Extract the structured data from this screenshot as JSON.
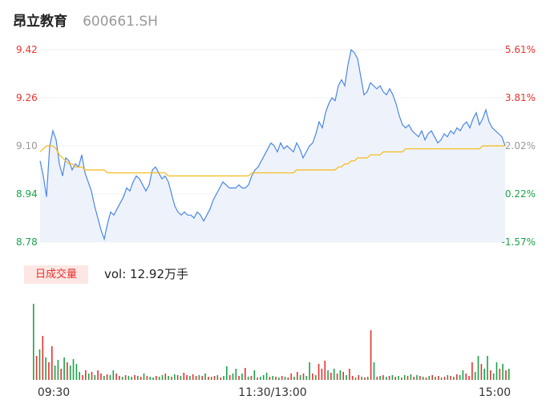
{
  "header": {
    "name": "昂立教育",
    "code": "600661.SH"
  },
  "volume_panel": {
    "tab_label": "日成交量",
    "vol_text": "vol: 12.92万手"
  },
  "colors": {
    "price_line": "#4a86e8",
    "price_fill": "#eef3fb",
    "avg_line": "#f5b915",
    "up": "#e8322d",
    "down": "#1aa34a",
    "neutral": "#999999"
  },
  "chart_data": {
    "type": "line",
    "title": "",
    "price_axis": {
      "min": 8.78,
      "max": 9.42,
      "ticks": [
        "9.42",
        "9.26",
        "9.10",
        "8.94",
        "8.78"
      ]
    },
    "pct_axis": {
      "ticks": [
        "5.61%",
        "3.81%",
        "2.02%",
        "0.22%",
        "-1.57%"
      ]
    },
    "x_ticks": [
      "09:30",
      "11:30/13:00",
      "15:00"
    ],
    "series": [
      {
        "values": [
          9.05,
          9.0,
          8.93,
          9.1,
          9.15,
          9.12,
          9.04,
          9.0,
          9.06,
          9.05,
          9.02,
          9.04,
          9.03,
          9.07,
          9.01,
          8.98,
          8.95,
          8.9,
          8.86,
          8.82,
          8.79,
          8.84,
          8.88,
          8.87,
          8.89,
          8.91,
          8.93,
          8.96,
          8.95,
          8.98,
          9.0,
          8.99,
          8.97,
          8.95,
          8.97,
          9.02,
          9.03,
          9.01,
          8.99,
          9.0,
          8.98,
          8.94,
          8.9,
          8.88,
          8.87,
          8.88,
          8.87,
          8.87,
          8.86,
          8.88,
          8.87,
          8.85,
          8.87,
          8.89,
          8.92,
          8.94,
          8.96,
          8.98,
          8.97,
          8.96,
          8.96,
          8.96,
          8.97,
          8.96,
          8.96,
          8.97,
          9.0,
          9.02,
          9.03,
          9.05,
          9.07,
          9.09,
          9.11,
          9.1,
          9.08,
          9.11,
          9.09,
          9.1,
          9.09,
          9.08,
          9.11,
          9.09,
          9.06,
          9.08,
          9.1,
          9.11,
          9.14,
          9.18,
          9.16,
          9.21,
          9.24,
          9.26,
          9.25,
          9.3,
          9.32,
          9.3,
          9.37,
          9.42,
          9.41,
          9.39,
          9.33,
          9.27,
          9.28,
          9.31,
          9.3,
          9.29,
          9.3,
          9.28,
          9.27,
          9.29,
          9.27,
          9.24,
          9.2,
          9.17,
          9.16,
          9.17,
          9.15,
          9.14,
          9.13,
          9.15,
          9.12,
          9.14,
          9.15,
          9.13,
          9.11,
          9.12,
          9.14,
          9.13,
          9.15,
          9.14,
          9.16,
          9.15,
          9.17,
          9.18,
          9.16,
          9.19,
          9.21,
          9.17,
          9.19,
          9.22,
          9.18,
          9.16,
          9.15,
          9.14,
          9.13,
          9.1
        ]
      },
      {
        "values": [
          9.08,
          9.09,
          9.1,
          9.1,
          9.1,
          9.09,
          9.07,
          9.06,
          9.05,
          9.04,
          9.04,
          9.03,
          9.03,
          9.03,
          9.02,
          9.02,
          9.02,
          9.02,
          9.02,
          9.02,
          9.02,
          9.01,
          9.01,
          9.01,
          9.01,
          9.01,
          9.01,
          9.01,
          9.01,
          9.01,
          9.01,
          9.01,
          9.01,
          9.01,
          9.01,
          9.01,
          9.01,
          9.01,
          9.01,
          9.01,
          9.0,
          9.0,
          9.0,
          9.0,
          9.0,
          9.0,
          9.0,
          9.0,
          9.0,
          9.0,
          9.0,
          9.0,
          9.0,
          9.0,
          9.0,
          9.0,
          9.0,
          9.0,
          9.0,
          9.0,
          9.0,
          9.0,
          9.0,
          9.0,
          9.0,
          9.0,
          9.01,
          9.01,
          9.01,
          9.01,
          9.01,
          9.01,
          9.01,
          9.01,
          9.01,
          9.01,
          9.01,
          9.01,
          9.01,
          9.01,
          9.02,
          9.02,
          9.02,
          9.02,
          9.02,
          9.02,
          9.02,
          9.02,
          9.02,
          9.02,
          9.02,
          9.02,
          9.02,
          9.03,
          9.03,
          9.04,
          9.04,
          9.05,
          9.05,
          9.06,
          9.06,
          9.06,
          9.06,
          9.07,
          9.07,
          9.07,
          9.07,
          9.08,
          9.08,
          9.08,
          9.08,
          9.08,
          9.08,
          9.08,
          9.09,
          9.09,
          9.09,
          9.09,
          9.09,
          9.09,
          9.09,
          9.09,
          9.09,
          9.09,
          9.09,
          9.09,
          9.09,
          9.09,
          9.09,
          9.09,
          9.09,
          9.09,
          9.09,
          9.09,
          9.09,
          9.09,
          9.09,
          9.09,
          9.1,
          9.1,
          9.1,
          9.1,
          9.1,
          9.1,
          9.1,
          9.1
        ]
      }
    ],
    "volume": [
      {
        "v": 95,
        "up": false
      },
      {
        "v": 30,
        "up": true
      },
      {
        "v": 38,
        "up": false
      },
      {
        "v": 55,
        "up": true
      },
      {
        "v": 28,
        "up": false
      },
      {
        "v": 22,
        "up": true
      },
      {
        "v": 42,
        "up": true
      },
      {
        "v": 18,
        "up": false
      },
      {
        "v": 25,
        "up": false
      },
      {
        "v": 14,
        "up": true
      },
      {
        "v": 28,
        "up": false
      },
      {
        "v": 22,
        "up": true
      },
      {
        "v": 18,
        "up": false
      },
      {
        "v": 26,
        "up": false
      },
      {
        "v": 20,
        "up": false
      },
      {
        "v": 10,
        "up": false
      },
      {
        "v": 6,
        "up": true
      },
      {
        "v": 12,
        "up": true
      },
      {
        "v": 8,
        "up": false
      },
      {
        "v": 10,
        "up": true
      },
      {
        "v": 6,
        "up": false
      },
      {
        "v": 12,
        "up": true
      },
      {
        "v": 8,
        "up": true
      },
      {
        "v": 5,
        "up": false
      },
      {
        "v": 7,
        "up": true
      },
      {
        "v": 6,
        "up": false
      },
      {
        "v": 12,
        "up": false
      },
      {
        "v": 8,
        "up": true
      },
      {
        "v": 5,
        "up": true
      },
      {
        "v": 4,
        "up": false
      },
      {
        "v": 6,
        "up": true
      },
      {
        "v": 5,
        "up": false
      },
      {
        "v": 4,
        "up": false
      },
      {
        "v": 6,
        "up": true
      },
      {
        "v": 5,
        "up": false
      },
      {
        "v": 4,
        "up": true
      },
      {
        "v": 8,
        "up": false
      },
      {
        "v": 5,
        "up": true
      },
      {
        "v": 4,
        "up": false
      },
      {
        "v": 3,
        "up": false
      },
      {
        "v": 5,
        "up": true
      },
      {
        "v": 4,
        "up": false
      },
      {
        "v": 6,
        "up": false
      },
      {
        "v": 8,
        "up": true
      },
      {
        "v": 5,
        "up": false
      },
      {
        "v": 4,
        "up": true
      },
      {
        "v": 7,
        "up": false
      },
      {
        "v": 6,
        "up": true
      },
      {
        "v": 5,
        "up": false
      },
      {
        "v": 9,
        "up": true
      },
      {
        "v": 6,
        "up": true
      },
      {
        "v": 5,
        "up": false
      },
      {
        "v": 7,
        "up": true
      },
      {
        "v": 5,
        "up": true
      },
      {
        "v": 6,
        "up": false
      },
      {
        "v": 5,
        "up": true
      },
      {
        "v": 8,
        "up": false
      },
      {
        "v": 4,
        "up": true
      },
      {
        "v": 4,
        "up": false
      },
      {
        "v": 5,
        "up": true
      },
      {
        "v": 6,
        "up": false
      },
      {
        "v": 3,
        "up": true
      },
      {
        "v": 5,
        "up": false
      },
      {
        "v": 17,
        "up": false
      },
      {
        "v": 6,
        "up": true
      },
      {
        "v": 8,
        "up": false
      },
      {
        "v": 14,
        "up": false
      },
      {
        "v": 5,
        "up": true
      },
      {
        "v": 8,
        "up": false
      },
      {
        "v": 15,
        "up": true
      },
      {
        "v": 4,
        "up": false
      },
      {
        "v": 5,
        "up": true
      },
      {
        "v": 12,
        "up": false
      },
      {
        "v": 3,
        "up": true
      },
      {
        "v": 4,
        "up": false
      },
      {
        "v": 6,
        "up": false
      },
      {
        "v": 9,
        "up": false
      },
      {
        "v": 4,
        "up": true
      },
      {
        "v": 5,
        "up": false
      },
      {
        "v": 4,
        "up": true
      },
      {
        "v": 3,
        "up": false
      },
      {
        "v": 5,
        "up": true
      },
      {
        "v": 4,
        "up": false
      },
      {
        "v": 3,
        "up": true
      },
      {
        "v": 8,
        "up": true
      },
      {
        "v": 4,
        "up": false
      },
      {
        "v": 10,
        "up": true
      },
      {
        "v": 6,
        "up": false
      },
      {
        "v": 8,
        "up": true
      },
      {
        "v": 5,
        "up": false
      },
      {
        "v": 22,
        "up": false
      },
      {
        "v": 8,
        "up": true
      },
      {
        "v": 6,
        "up": false
      },
      {
        "v": 20,
        "up": true
      },
      {
        "v": 14,
        "up": true
      },
      {
        "v": 24,
        "up": true
      },
      {
        "v": 12,
        "up": false
      },
      {
        "v": 9,
        "up": true
      },
      {
        "v": 14,
        "up": false
      },
      {
        "v": 8,
        "up": true
      },
      {
        "v": 12,
        "up": false
      },
      {
        "v": 10,
        "up": true
      },
      {
        "v": 6,
        "up": false
      },
      {
        "v": 14,
        "up": true
      },
      {
        "v": 5,
        "up": true
      },
      {
        "v": 3,
        "up": false
      },
      {
        "v": 6,
        "up": true
      },
      {
        "v": 4,
        "up": false
      },
      {
        "v": 3,
        "up": true
      },
      {
        "v": 4,
        "up": false
      },
      {
        "v": 62,
        "up": true
      },
      {
        "v": 22,
        "up": false
      },
      {
        "v": 4,
        "up": true
      },
      {
        "v": 5,
        "up": false
      },
      {
        "v": 6,
        "up": true
      },
      {
        "v": 4,
        "up": false
      },
      {
        "v": 5,
        "up": true
      },
      {
        "v": 6,
        "up": false
      },
      {
        "v": 4,
        "up": true
      },
      {
        "v": 5,
        "up": false
      },
      {
        "v": 3,
        "up": true
      },
      {
        "v": 6,
        "up": false
      },
      {
        "v": 5,
        "up": true
      },
      {
        "v": 7,
        "up": false
      },
      {
        "v": 4,
        "up": true
      },
      {
        "v": 6,
        "up": false
      },
      {
        "v": 5,
        "up": true
      },
      {
        "v": 4,
        "up": false
      },
      {
        "v": 3,
        "up": true
      },
      {
        "v": 5,
        "up": false
      },
      {
        "v": 6,
        "up": true
      },
      {
        "v": 4,
        "up": false
      },
      {
        "v": 5,
        "up": true
      },
      {
        "v": 3,
        "up": false
      },
      {
        "v": 4,
        "up": true
      },
      {
        "v": 6,
        "up": false
      },
      {
        "v": 5,
        "up": true
      },
      {
        "v": 4,
        "up": false
      },
      {
        "v": 7,
        "up": true
      },
      {
        "v": 6,
        "up": false
      },
      {
        "v": 12,
        "up": false
      },
      {
        "v": 8,
        "up": true
      },
      {
        "v": 5,
        "up": true
      },
      {
        "v": 22,
        "up": true
      },
      {
        "v": 10,
        "up": false
      },
      {
        "v": 30,
        "up": false
      },
      {
        "v": 20,
        "up": true
      },
      {
        "v": 14,
        "up": false
      },
      {
        "v": 30,
        "up": false
      },
      {
        "v": 12,
        "up": true
      },
      {
        "v": 8,
        "up": false
      },
      {
        "v": 22,
        "up": false
      },
      {
        "v": 14,
        "up": true
      },
      {
        "v": 20,
        "up": false
      },
      {
        "v": 12,
        "up": true
      },
      {
        "v": 14,
        "up": false
      }
    ]
  }
}
